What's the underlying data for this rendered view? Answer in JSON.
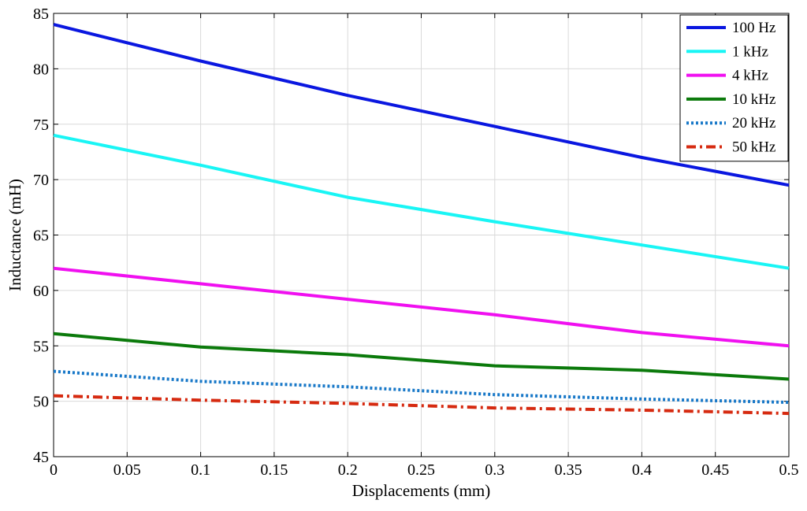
{
  "chart_data": {
    "type": "line",
    "xlabel": "Displacements (mm)",
    "ylabel": "Inductance (mH)",
    "xlim": [
      0,
      0.5
    ],
    "ylim": [
      45,
      85
    ],
    "xticks": [
      "0",
      "0.05",
      "0.1",
      "0.15",
      "0.2",
      "0.25",
      "0.3",
      "0.35",
      "0.4",
      "0.45",
      "0.5"
    ],
    "yticks": [
      "45",
      "50",
      "55",
      "60",
      "65",
      "70",
      "75",
      "80",
      "85"
    ],
    "grid": true,
    "legend_position": "top-right",
    "x": [
      0,
      0.1,
      0.2,
      0.3,
      0.4,
      0.5
    ],
    "series": [
      {
        "name": "100 Hz",
        "values": [
          84.0,
          80.7,
          77.6,
          74.8,
          72.0,
          69.5
        ],
        "color": "#0a17e0",
        "style": "solid"
      },
      {
        "name": "1 kHz",
        "values": [
          74.0,
          71.3,
          68.4,
          66.2,
          64.1,
          62.0
        ],
        "color": "#19f5f5",
        "style": "solid"
      },
      {
        "name": "4 kHz",
        "values": [
          62.0,
          60.6,
          59.2,
          57.8,
          56.2,
          55.0
        ],
        "color": "#f010f0",
        "style": "solid"
      },
      {
        "name": "10 kHz",
        "values": [
          56.1,
          54.9,
          54.2,
          53.2,
          52.8,
          52.0
        ],
        "color": "#0b7a0b",
        "style": "solid"
      },
      {
        "name": "20 kHz",
        "values": [
          52.7,
          51.8,
          51.3,
          50.6,
          50.2,
          49.9
        ],
        "color": "#1878c8",
        "style": "dotted"
      },
      {
        "name": "50 kHz",
        "values": [
          50.5,
          50.1,
          49.8,
          49.4,
          49.2,
          48.9
        ],
        "color": "#d62a10",
        "style": "dashdot"
      }
    ]
  }
}
